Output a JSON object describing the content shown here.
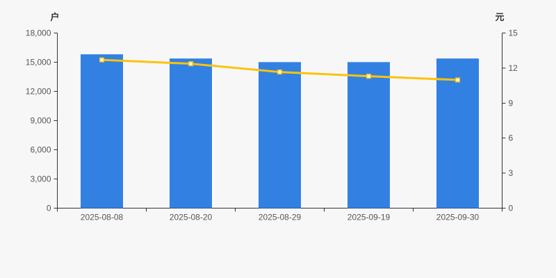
{
  "chart": {
    "left_axis_title": "户",
    "right_axis_title": "元",
    "left_ticks": [
      "0",
      "3,000",
      "6,000",
      "9,000",
      "12,000",
      "15,000",
      "18,000"
    ],
    "right_ticks": [
      "0",
      "3",
      "6",
      "9",
      "12",
      "15"
    ],
    "x_labels": [
      "2025-08-08",
      "2025-08-20",
      "2025-08-29",
      "2025-09-19",
      "2025-09-30"
    ]
  },
  "chart_data": {
    "type": "bar",
    "categories": [
      "2025-08-08",
      "2025-08-20",
      "2025-08-29",
      "2025-09-19",
      "2025-09-30"
    ],
    "series": [
      {
        "name": "户",
        "type": "bar",
        "axis": "left",
        "values": [
          15810,
          15380,
          15010,
          15010,
          15380
        ],
        "color": "#3281E2"
      },
      {
        "name": "元",
        "type": "line",
        "axis": "right",
        "values": [
          12.7,
          12.37,
          11.66,
          11.3,
          10.98
        ],
        "color": "#FCC30B",
        "marker_fill": "#FFFFFF"
      }
    ],
    "left_axis": {
      "label": "户",
      "min": 0,
      "max": 18000,
      "tick_step": 3000
    },
    "right_axis": {
      "label": "元",
      "min": 0,
      "max": 15,
      "tick_step": 3
    },
    "grid": false,
    "legend": "none"
  },
  "colors": {
    "background": "#F7F7F7",
    "axis_line": "#333333",
    "tick_label": "#555555",
    "axis_title": "#333333",
    "bar": "#3281E2",
    "line": "#FCC30B",
    "marker_fill": "#FFFFFF"
  }
}
